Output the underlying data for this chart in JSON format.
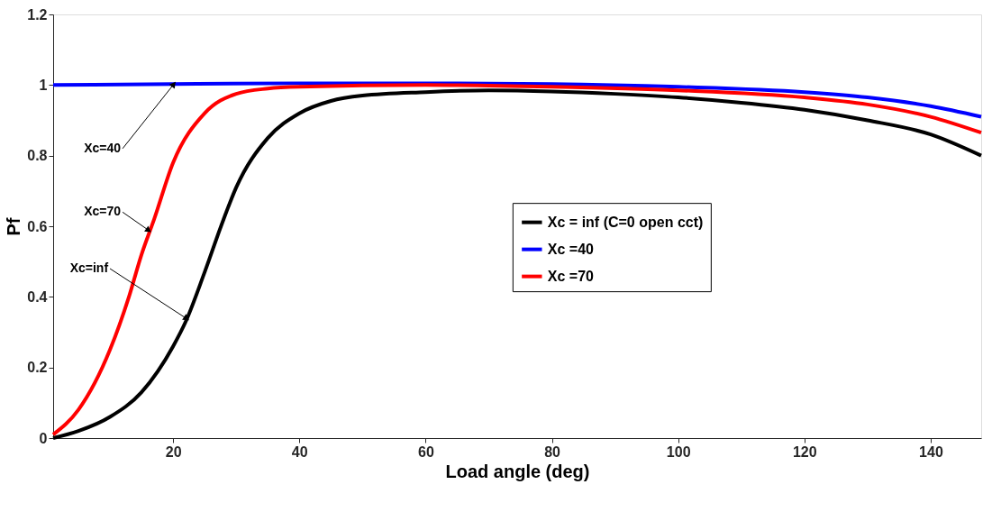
{
  "chart_data": {
    "type": "line",
    "xlabel": "Load angle (deg)",
    "ylabel": "Pf",
    "xlim": [
      1,
      148
    ],
    "ylim": [
      0,
      1.2
    ],
    "xticks": [
      20,
      40,
      60,
      80,
      100,
      120,
      140
    ],
    "yticks": [
      {
        "value": 0,
        "label": "0"
      },
      0.2,
      0.4,
      0.6,
      0.8,
      {
        "value": 1,
        "label": "1"
      },
      1.2
    ],
    "grid": false,
    "legend": "right",
    "marker": "none",
    "line_style": "solid",
    "series": [
      {
        "name": "Xc = inf (C=0 open cct)",
        "color": "#000000",
        "x": [
          1,
          5,
          10,
          15,
          20,
          22,
          25,
          28,
          30,
          35,
          40,
          45,
          50,
          60,
          70,
          80,
          90,
          100,
          110,
          120,
          130,
          140,
          148
        ],
        "values": [
          0,
          0.02,
          0.06,
          0.13,
          0.26,
          0.33,
          0.47,
          0.62,
          0.71,
          0.85,
          0.92,
          0.955,
          0.97,
          0.98,
          0.985,
          0.982,
          0.975,
          0.965,
          0.95,
          0.93,
          0.9,
          0.86,
          0.8
        ]
      },
      {
        "name": "Xc =40",
        "color": "#0000ff",
        "x": [
          1,
          20,
          40,
          60,
          80,
          100,
          120,
          130,
          140,
          148
        ],
        "values": [
          1.0,
          1.003,
          1.005,
          1.005,
          1.003,
          0.995,
          0.98,
          0.965,
          0.94,
          0.91
        ]
      },
      {
        "name": "Xc =70",
        "color": "#ff0000",
        "x": [
          1,
          5,
          10,
          13,
          15,
          17,
          20,
          25,
          30,
          35,
          40,
          60,
          80,
          100,
          120,
          130,
          140,
          148
        ],
        "values": [
          0.01,
          0.08,
          0.25,
          0.4,
          0.52,
          0.62,
          0.78,
          0.92,
          0.975,
          0.99,
          0.995,
          1.0,
          0.995,
          0.985,
          0.965,
          0.945,
          0.91,
          0.865
        ]
      }
    ],
    "annotations": [
      {
        "text": "Xc=40",
        "x": 20,
        "y": 1.0
      },
      {
        "text": "Xc=70",
        "x": 16,
        "y": 0.59
      },
      {
        "text": "Xc=inf",
        "x": 22,
        "y": 0.34
      }
    ]
  }
}
